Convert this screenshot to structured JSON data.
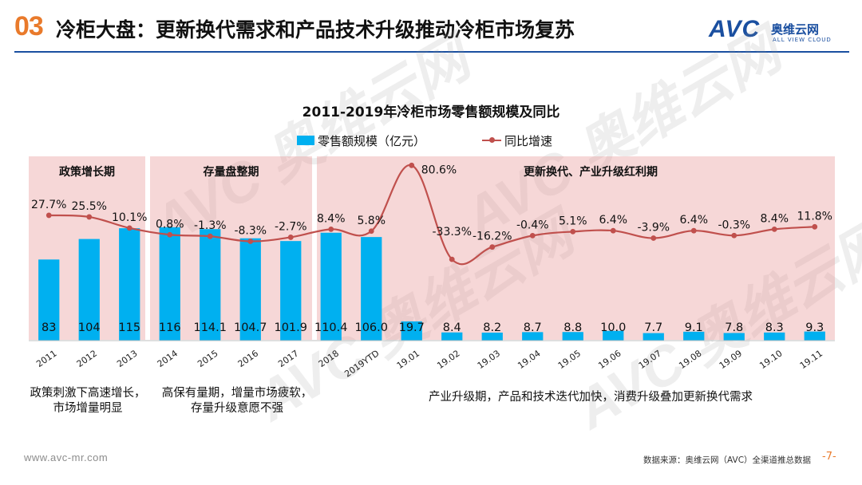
{
  "header": {
    "section_number": "03",
    "title": "冷柜大盘：更新换代需求和产品技术升级推动冷柜市场复苏"
  },
  "logo": {
    "brand": "AVC",
    "name_cn": "奥维云网",
    "name_en": "ALL VIEW CLOUD"
  },
  "watermark": "AVC 奥维云网",
  "phases": [
    {
      "label": "政策增长期",
      "caption": "政策刺激下高速增长，\n市场增量明显"
    },
    {
      "label": "存量盘整期",
      "caption": "高保有量期，增量市场疲软，\n存量升级意愿不强"
    },
    {
      "label": "更新换代、产业升级红利期",
      "caption": "产业升级期，产品和技术迭代加快，消费升级叠加更新换代需求"
    }
  ],
  "chart_data": {
    "type": "bar",
    "title": "2011-2019年冷柜市场零售额规模及同比",
    "categories": [
      "2011",
      "2012",
      "2013",
      "2014",
      "2015",
      "2016",
      "2017",
      "2018",
      "2019YTD",
      "19.01",
      "19.02",
      "19.03",
      "19.04",
      "19.05",
      "19.06",
      "19.07",
      "19.08",
      "19.09",
      "19.10",
      "19.11"
    ],
    "series": [
      {
        "name": "零售额规模（亿元）",
        "type": "bar",
        "color": "#00b0f0",
        "values": [
          83,
          104,
          115,
          116,
          114.1,
          104.7,
          101.9,
          110.4,
          106.0,
          19.7,
          8.4,
          8.2,
          8.7,
          8.8,
          10.0,
          7.7,
          9.1,
          7.8,
          8.3,
          9.3
        ],
        "labels": [
          "83",
          "104",
          "115",
          "116",
          "114.1",
          "104.7",
          "101.9",
          "110.4",
          "106.0",
          "19.7",
          "8.4",
          "8.2",
          "8.7",
          "8.8",
          "10.0",
          "7.7",
          "9.1",
          "7.8",
          "8.3",
          "9.3"
        ]
      },
      {
        "name": "同比增速",
        "type": "line",
        "color": "#c0504d",
        "values": [
          27.7,
          25.5,
          10.1,
          0.8,
          -1.3,
          -8.3,
          -2.7,
          8.4,
          5.8,
          80.6,
          -33.3,
          -16.2,
          -0.4,
          5.1,
          6.4,
          -3.9,
          6.4,
          -0.3,
          8.4,
          11.8
        ],
        "labels": [
          "27.7%",
          "25.5%",
          "10.1%",
          "0.8%",
          "-1.3%",
          "-8.3%",
          "-2.7%",
          "8.4%",
          "5.8%",
          "80.6%",
          "-33.3%",
          "-16.2%",
          "-0.4%",
          "5.1%",
          "6.4%",
          "-3.9%",
          "6.4%",
          "-0.3%",
          "8.4%",
          "11.8%"
        ]
      }
    ],
    "ylabel": "",
    "xlabel": ""
  },
  "footer": {
    "website": "www.avc-mr.com",
    "source": "数据来源：奥维云网（AVC）全渠道推总数据",
    "page": "-7-"
  }
}
